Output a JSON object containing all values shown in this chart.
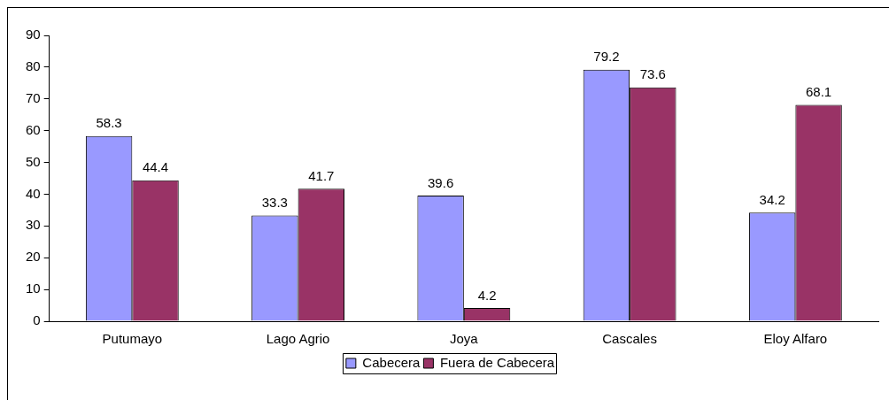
{
  "chart_data": {
    "type": "bar",
    "categories": [
      "Putumayo",
      "Lago Agrio",
      "Joya",
      "Cascales",
      "Eloy Alfaro"
    ],
    "series": [
      {
        "name": "Cabecera",
        "color": "#9999ff",
        "values": [
          58.3,
          33.3,
          39.6,
          79.2,
          34.2
        ]
      },
      {
        "name": "Fuera de Cabecera",
        "color": "#993366",
        "values": [
          44.4,
          41.7,
          4.2,
          73.6,
          68.1
        ]
      }
    ],
    "ylim": [
      0,
      90
    ],
    "yticks": [
      0,
      10,
      20,
      30,
      40,
      50,
      60,
      70,
      80,
      90
    ],
    "grid": false,
    "legend": "bottom",
    "data_labels": true
  }
}
